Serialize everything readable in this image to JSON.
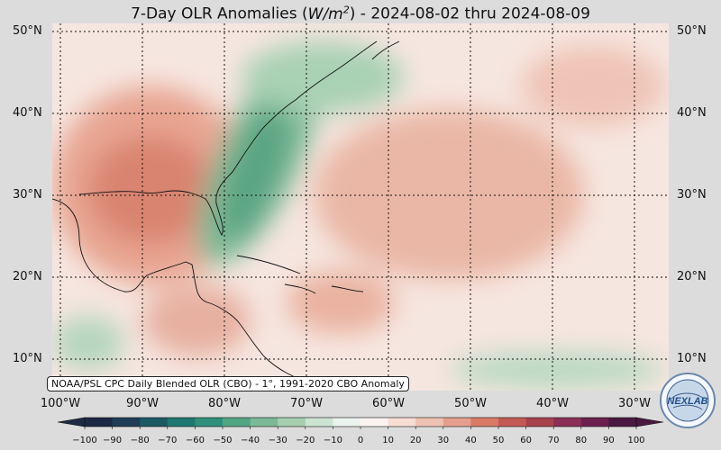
{
  "title": {
    "prefix": "7-Day OLR Anomalies (",
    "unit_base": "W/m",
    "unit_exp": "2",
    "suffix": ") - 2024-08-02 thru 2024-08-09"
  },
  "latitudes": [
    "50°N",
    "40°N",
    "30°N",
    "20°N",
    "10°N"
  ],
  "longitudes": [
    "100°W",
    "90°W",
    "80°W",
    "70°W",
    "60°W",
    "50°W",
    "40°W",
    "30°W"
  ],
  "attribution": "NOAA/PSL CPC Daily Blended OLR (CBO) - 1°, 1991-2020 CBO Anomaly",
  "colorbar": {
    "ticks": [
      "−100",
      "−90",
      "−80",
      "−70",
      "−60",
      "−50",
      "−40",
      "−30",
      "−20",
      "−10",
      "0",
      "10",
      "20",
      "30",
      "40",
      "50",
      "60",
      "70",
      "80",
      "90",
      "100"
    ],
    "colors": [
      "#1d2a45",
      "#1f3d55",
      "#1c5a63",
      "#1f7870",
      "#2f907b",
      "#52a585",
      "#7cba97",
      "#a6cfb0",
      "#cde4d3",
      "#ebf3ee",
      "#fbf3f0",
      "#f7ddd4",
      "#efc1b3",
      "#e59f8c",
      "#d97a67",
      "#c45a54",
      "#a8424f",
      "#8a2f55",
      "#6b2150",
      "#4a1841"
    ]
  },
  "logo": {
    "text": "NEXLAB",
    "icon": "nexlab-globe-icon"
  },
  "map": {
    "region": "North Atlantic / Caribbean / Gulf of Mexico",
    "lon_range": [
      -102,
      -27
    ],
    "lat_range": [
      6,
      51
    ],
    "grid_lines": true,
    "anomaly_features": [
      {
        "name": "Gulf of Mexico / southern US positive anomaly",
        "sign": "positive"
      },
      {
        "name": "US east coast / western Atlantic negative band",
        "sign": "negative"
      },
      {
        "name": "Central Atlantic positive anomaly",
        "sign": "positive"
      },
      {
        "name": "Caribbean positive anomaly",
        "sign": "positive"
      },
      {
        "name": "Tropical Atlantic negative strip",
        "sign": "negative"
      }
    ]
  }
}
